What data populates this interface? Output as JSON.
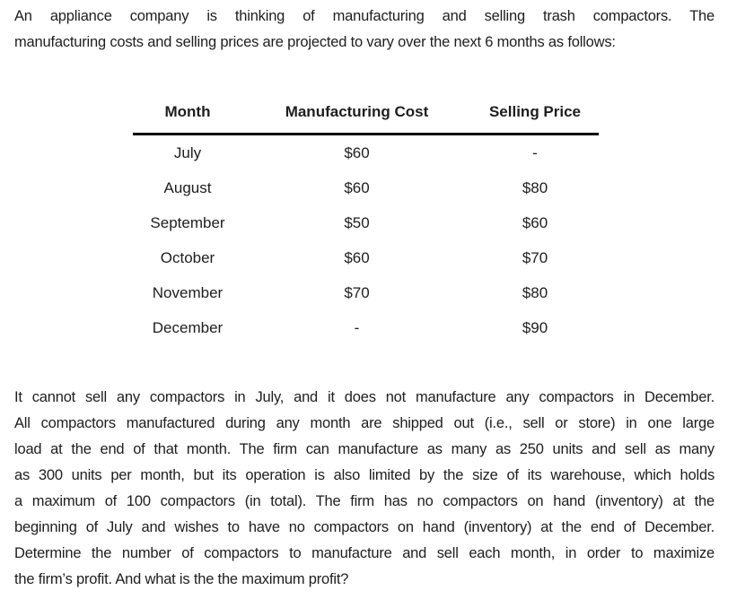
{
  "document": {
    "intro": {
      "lines": [
        "An appliance company is thinking of manufacturing and selling trash compactors. The",
        "manufacturing costs and selling prices are projected to vary over the next 6 months as follows:"
      ]
    },
    "table": {
      "headers": [
        "Month",
        "Manufacturing Cost",
        "Selling Price"
      ],
      "rows": [
        {
          "month": "July",
          "cost": "$60",
          "price": "-"
        },
        {
          "month": "August",
          "cost": "$60",
          "price": "$80"
        },
        {
          "month": "September",
          "cost": "$50",
          "price": "$60"
        },
        {
          "month": "October",
          "cost": "$60",
          "price": "$70"
        },
        {
          "month": "November",
          "cost": "$70",
          "price": "$80"
        },
        {
          "month": "December",
          "cost": "-",
          "price": "$90"
        }
      ]
    },
    "constraints": {
      "lines": [
        "It cannot sell any compactors in July, and it does not manufacture any compactors in December.",
        "All compactors manufactured during any month are shipped out (i.e., sell or store) in one large",
        "load at the end of that month. The firm can manufacture as many as 250 units and sell as many",
        "as 300 units per month, but its operation is also limited by the size of its warehouse, which holds",
        "a maximum of 100 compactors (in total). The firm has no compactors on hand (inventory) at the",
        "beginning of July and wishes to have no compactors on hand (inventory) at the end of December.",
        "Determine the number of compactors to manufacture and sell each month, in order to maximize",
        "the firm’s profit. And what is the the maximum profit?"
      ]
    },
    "colors": {
      "background": "#ffffff",
      "text": "#1e1e1e",
      "table_rule": "#000000"
    }
  }
}
